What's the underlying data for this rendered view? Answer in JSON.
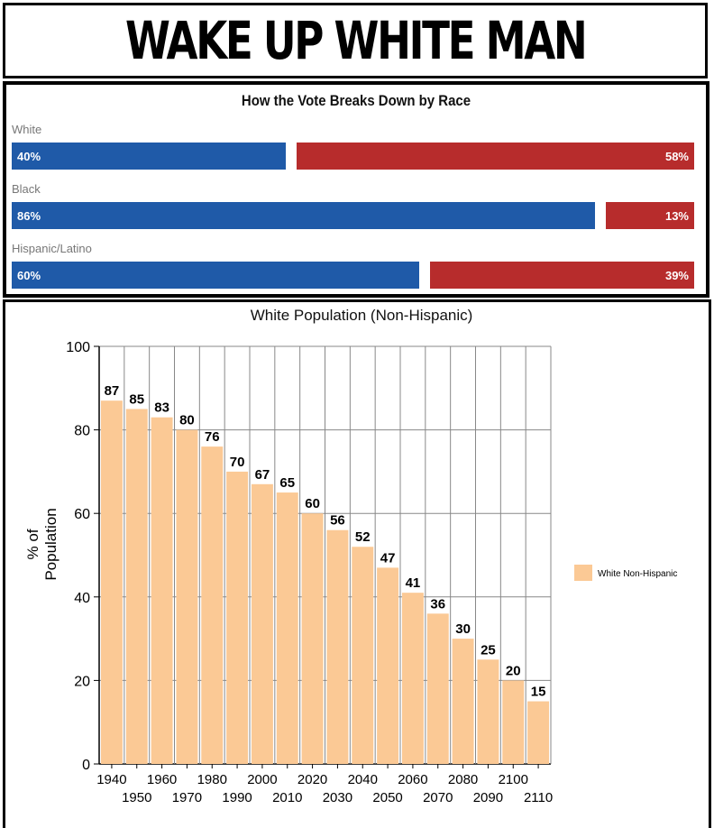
{
  "header": {
    "title": "WAKE UP WHITE MAN"
  },
  "chart_data": [
    {
      "type": "bar",
      "orientation": "horizontal-stacked",
      "title": "How the Vote Breaks Down by Race",
      "categories": [
        "White",
        "Black",
        "Hispanic/Latino"
      ],
      "series": [
        {
          "values": [
            40,
            86,
            60
          ],
          "labels": [
            "40%",
            "86%",
            "60%"
          ],
          "color": "#1f5aa8"
        },
        {
          "values": [
            58,
            13,
            39
          ],
          "labels": [
            "58%",
            "13%",
            "39%"
          ],
          "color": "#b72c2c"
        }
      ],
      "xlim": [
        0,
        100
      ]
    },
    {
      "type": "bar",
      "title": "White Population (Non-Hispanic)",
      "ylabel": "% of Population",
      "xlabel": "",
      "categories": [
        "1940",
        "1950",
        "1960",
        "1970",
        "1980",
        "1990",
        "2000",
        "2010",
        "2020",
        "2030",
        "2040",
        "2050",
        "2060",
        "2070",
        "2080",
        "2090",
        "2100",
        "2110"
      ],
      "series": [
        {
          "name": "White Non-Hispanic",
          "values": [
            87,
            85,
            83,
            80,
            76,
            70,
            67,
            65,
            60,
            56,
            52,
            47,
            41,
            36,
            30,
            25,
            20,
            15
          ],
          "color": "#fbc995"
        }
      ],
      "ylim": [
        0,
        100
      ],
      "yticks": [
        0,
        20,
        40,
        60,
        80,
        100
      ],
      "grid": true,
      "legend": "right"
    }
  ]
}
